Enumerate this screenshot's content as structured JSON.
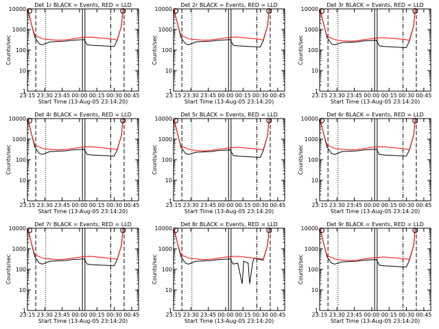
{
  "page": {
    "ylabel": "Counts/sec",
    "xlabel": "Start Time (13-Aug-05 23:14:20)"
  },
  "chart_data": [
    {
      "title": "Det 1r BLACK = Events, RED = LLD",
      "type": "line",
      "x_ticks": [
        "23:15",
        "23:30",
        "23:45",
        "00:00",
        "00:15",
        "00:30",
        "00:45"
      ],
      "y_ticks": [
        "1",
        "10",
        "100",
        "1000",
        "10000"
      ],
      "ylim": [
        1,
        10000
      ],
      "yscale": "log",
      "series": [
        {
          "color": "#000000",
          "x": [
            0,
            1,
            3,
            5,
            8,
            10,
            15,
            20,
            25,
            30,
            38,
            40,
            43,
            50,
            58,
            60,
            63,
            64
          ],
          "y": [
            10000,
            6000,
            1500,
            400,
            200,
            180,
            250,
            260,
            270,
            300,
            320,
            180,
            170,
            160,
            150,
            280,
            1500,
            10000
          ]
        },
        {
          "color": "#ff0000",
          "x": [
            0,
            1,
            3,
            5,
            8,
            10,
            15,
            20,
            25,
            30,
            38,
            43,
            50,
            58,
            60,
            63,
            64
          ],
          "y": [
            10000,
            6000,
            1500,
            500,
            420,
            350,
            320,
            300,
            310,
            350,
            420,
            430,
            380,
            330,
            300,
            1500,
            10000
          ]
        }
      ]
    },
    {
      "title": "Det 2r BLACK = Events, RED = LLD",
      "type": "line",
      "x_ticks": [
        "23:15",
        "23:30",
        "23:45",
        "00:00",
        "00:15",
        "00:30",
        "00:45"
      ],
      "y_ticks": [
        "1",
        "10",
        "100",
        "1000",
        "10000"
      ],
      "ylim": [
        1,
        10000
      ],
      "yscale": "log",
      "series": [
        {
          "color": "#000000",
          "x": [
            0,
            1,
            3,
            5,
            8,
            10,
            15,
            20,
            25,
            30,
            38,
            40,
            43,
            50,
            58,
            60,
            63,
            64
          ],
          "y": [
            10000,
            6000,
            1500,
            400,
            200,
            180,
            250,
            260,
            270,
            300,
            320,
            170,
            160,
            150,
            140,
            270,
            1500,
            10000
          ]
        },
        {
          "color": "#ff0000",
          "x": [
            0,
            1,
            3,
            5,
            8,
            10,
            15,
            20,
            25,
            30,
            38,
            43,
            50,
            58,
            60,
            63,
            64
          ],
          "y": [
            10000,
            6000,
            1500,
            500,
            420,
            350,
            320,
            300,
            310,
            350,
            420,
            430,
            380,
            330,
            300,
            1500,
            10000
          ]
        }
      ]
    },
    {
      "title": "Det 3r BLACK = Events, RED = LLD",
      "type": "line",
      "x_ticks": [
        "23:15",
        "23:30",
        "23:45",
        "00:00",
        "00:15",
        "00:30",
        "00:45"
      ],
      "y_ticks": [
        "1",
        "10",
        "100",
        "1000",
        "10000"
      ],
      "ylim": [
        1,
        10000
      ],
      "yscale": "log",
      "series": [
        {
          "color": "#000000",
          "x": [
            0,
            1,
            3,
            5,
            8,
            10,
            15,
            20,
            25,
            30,
            38,
            40,
            43,
            50,
            58,
            60,
            63,
            64
          ],
          "y": [
            10000,
            6000,
            1500,
            400,
            200,
            180,
            230,
            240,
            250,
            280,
            300,
            160,
            150,
            140,
            130,
            260,
            1500,
            10000
          ]
        },
        {
          "color": "#ff0000",
          "x": [
            0,
            1,
            3,
            5,
            8,
            10,
            15,
            20,
            25,
            30,
            38,
            43,
            50,
            58,
            60,
            63,
            64
          ],
          "y": [
            10000,
            6000,
            1500,
            450,
            380,
            320,
            280,
            270,
            280,
            320,
            380,
            400,
            360,
            320,
            290,
            1500,
            10000
          ]
        }
      ]
    },
    {
      "title": "Det 4r BLACK = Events, RED = LLD",
      "type": "line",
      "x_ticks": [
        "23:15",
        "23:30",
        "23:45",
        "00:00",
        "00:15",
        "00:30",
        "00:45"
      ],
      "y_ticks": [
        "1",
        "10",
        "100",
        "1000",
        "10000"
      ],
      "ylim": [
        1,
        10000
      ],
      "yscale": "log",
      "series": [
        {
          "color": "#000000",
          "x": [
            0,
            1,
            3,
            5,
            8,
            10,
            15,
            20,
            25,
            30,
            38,
            40,
            43,
            50,
            58,
            60,
            63,
            64
          ],
          "y": [
            10000,
            6000,
            1500,
            400,
            200,
            180,
            250,
            260,
            270,
            300,
            320,
            180,
            170,
            160,
            150,
            280,
            1500,
            10000
          ]
        },
        {
          "color": "#ff0000",
          "x": [
            0,
            1,
            3,
            5,
            8,
            10,
            15,
            20,
            25,
            30,
            38,
            43,
            50,
            58,
            60,
            63,
            64
          ],
          "y": [
            10000,
            6000,
            1500,
            500,
            420,
            350,
            320,
            300,
            310,
            350,
            420,
            430,
            380,
            330,
            300,
            1500,
            10000
          ]
        }
      ]
    },
    {
      "title": "Det 5r BLACK = Events, RED = LLD",
      "type": "line",
      "x_ticks": [
        "23:15",
        "23:30",
        "23:45",
        "00:00",
        "00:15",
        "00:30",
        "00:45"
      ],
      "y_ticks": [
        "1",
        "10",
        "100",
        "1000",
        "10000"
      ],
      "ylim": [
        1,
        10000
      ],
      "yscale": "log",
      "series": [
        {
          "color": "#000000",
          "x": [
            0,
            1,
            3,
            5,
            8,
            10,
            15,
            20,
            25,
            30,
            38,
            40,
            43,
            50,
            58,
            60,
            63,
            64
          ],
          "y": [
            10000,
            6000,
            1500,
            400,
            200,
            180,
            230,
            240,
            250,
            280,
            300,
            160,
            150,
            140,
            130,
            260,
            1500,
            10000
          ]
        },
        {
          "color": "#ff0000",
          "x": [
            0,
            1,
            3,
            5,
            8,
            10,
            15,
            20,
            25,
            30,
            38,
            43,
            50,
            58,
            60,
            63,
            64
          ],
          "y": [
            10000,
            6000,
            1500,
            450,
            380,
            320,
            280,
            270,
            280,
            320,
            380,
            400,
            360,
            320,
            290,
            1500,
            10000
          ]
        }
      ]
    },
    {
      "title": "Det 6r BLACK = Events, RED = LLD",
      "type": "line",
      "x_ticks": [
        "23:15",
        "23:30",
        "23:45",
        "00:00",
        "00:15",
        "00:30",
        "00:45"
      ],
      "y_ticks": [
        "1",
        "10",
        "100",
        "1000",
        "10000"
      ],
      "ylim": [
        1,
        10000
      ],
      "yscale": "log",
      "series": [
        {
          "color": "#000000",
          "x": [
            0,
            1,
            3,
            5,
            8,
            10,
            15,
            20,
            25,
            30,
            38,
            40,
            43,
            50,
            58,
            60,
            63,
            64
          ],
          "y": [
            10000,
            6000,
            1500,
            400,
            200,
            180,
            250,
            260,
            270,
            300,
            320,
            180,
            170,
            160,
            150,
            280,
            1500,
            10000
          ]
        },
        {
          "color": "#ff0000",
          "x": [
            0,
            1,
            3,
            5,
            8,
            10,
            15,
            20,
            25,
            30,
            38,
            43,
            50,
            58,
            60,
            63,
            64
          ],
          "y": [
            10000,
            6000,
            1500,
            500,
            420,
            350,
            320,
            300,
            310,
            350,
            420,
            430,
            380,
            330,
            300,
            1500,
            10000
          ]
        }
      ]
    },
    {
      "title": "Det 7r BLACK = Events, RED = LLD",
      "type": "line",
      "x_ticks": [
        "23:15",
        "23:30",
        "23:45",
        "00:00",
        "00:15",
        "00:30",
        "00:45"
      ],
      "y_ticks": [
        "1",
        "10",
        "100",
        "1000",
        "10000"
      ],
      "ylim": [
        1,
        10000
      ],
      "yscale": "log",
      "series": [
        {
          "color": "#000000",
          "x": [
            0,
            1,
            3,
            5,
            8,
            10,
            15,
            20,
            25,
            30,
            38,
            40,
            43,
            50,
            58,
            60,
            63,
            64
          ],
          "y": [
            10000,
            6000,
            1500,
            400,
            200,
            180,
            250,
            260,
            270,
            300,
            320,
            180,
            170,
            160,
            150,
            280,
            1500,
            10000
          ]
        },
        {
          "color": "#ff0000",
          "x": [
            0,
            1,
            3,
            5,
            8,
            10,
            15,
            20,
            25,
            30,
            38,
            43,
            50,
            58,
            60,
            63,
            64
          ],
          "y": [
            10000,
            6000,
            1500,
            500,
            420,
            350,
            320,
            300,
            310,
            350,
            420,
            430,
            380,
            330,
            300,
            1500,
            10000
          ]
        }
      ]
    },
    {
      "title": "Det 8r BLACK = Events, RED = LLD",
      "type": "line",
      "x_ticks": [
        "23:15",
        "23:30",
        "23:45",
        "00:00",
        "00:15",
        "00:30",
        "00:45"
      ],
      "y_ticks": [
        "1",
        "10",
        "100",
        "1000",
        "10000"
      ],
      "ylim": [
        1,
        10000
      ],
      "yscale": "log",
      "series": [
        {
          "color": "#000000",
          "x": [
            0,
            1,
            3,
            5,
            8,
            10,
            15,
            20,
            25,
            30,
            38,
            40,
            43,
            46,
            47,
            50,
            51,
            53,
            54,
            58,
            60,
            63,
            64
          ],
          "y": [
            10000,
            6000,
            1500,
            400,
            200,
            180,
            250,
            260,
            270,
            300,
            320,
            180,
            200,
            20,
            250,
            200,
            20,
            220,
            350,
            300,
            280,
            1500,
            10000
          ]
        },
        {
          "color": "#ff0000",
          "x": [
            0,
            1,
            3,
            5,
            8,
            10,
            15,
            20,
            25,
            30,
            38,
            43,
            50,
            58,
            60,
            63,
            64
          ],
          "y": [
            10000,
            6000,
            1500,
            500,
            420,
            350,
            320,
            300,
            310,
            350,
            420,
            430,
            380,
            330,
            300,
            1500,
            10000
          ]
        }
      ]
    },
    {
      "title": "Det 9r BLACK = Events, RED = LLD",
      "type": "line",
      "x_ticks": [
        "23:15",
        "23:30",
        "23:45",
        "00:00",
        "00:15",
        "00:30",
        "00:45"
      ],
      "y_ticks": [
        "1",
        "10",
        "100",
        "1000",
        "10000"
      ],
      "ylim": [
        1,
        10000
      ],
      "yscale": "log",
      "series": [
        {
          "color": "#000000",
          "x": [
            0,
            1,
            3,
            5,
            8,
            10,
            15,
            20,
            25,
            30,
            38,
            40,
            43,
            50,
            58,
            60,
            63,
            64
          ],
          "y": [
            10000,
            6000,
            1500,
            400,
            200,
            180,
            230,
            240,
            250,
            280,
            300,
            160,
            150,
            140,
            130,
            260,
            1500,
            10000
          ]
        },
        {
          "color": "#ff0000",
          "x": [
            0,
            1,
            3,
            5,
            8,
            10,
            15,
            20,
            25,
            30,
            38,
            43,
            50,
            58,
            60,
            63,
            64
          ],
          "y": [
            10000,
            6000,
            1500,
            450,
            380,
            320,
            280,
            270,
            280,
            320,
            380,
            400,
            360,
            320,
            290,
            1500,
            10000
          ]
        }
      ]
    }
  ]
}
